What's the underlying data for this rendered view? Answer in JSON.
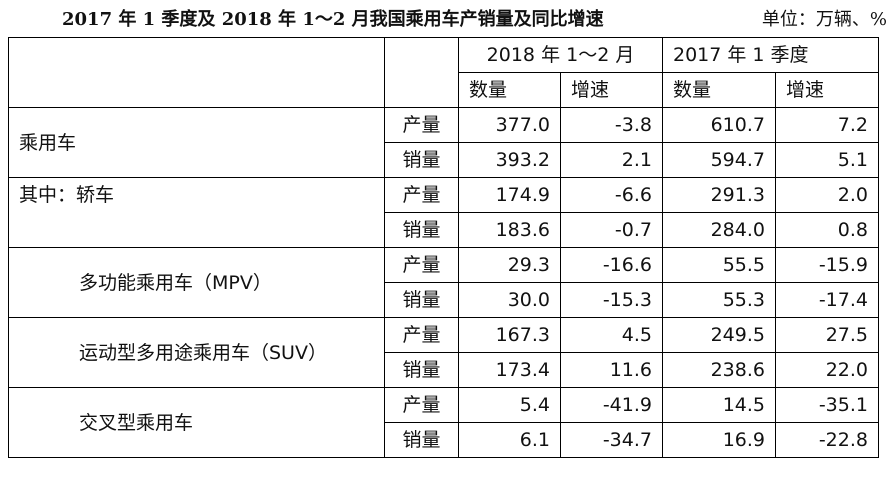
{
  "title": "2017 年 1 季度及 2018 年 1～2 月我国乘用车产销量及同比增速",
  "unit": "单位：万辆、%",
  "header": {
    "period_2018": "2018 年 1～2 月",
    "period_2017": "2017 年 1 季度",
    "col_qty": "数量",
    "col_growth": "增速"
  },
  "rows": [
    {
      "category": "乘用车",
      "production_label": "产量",
      "production": {
        "q2018": "377.0",
        "g2018": "-3.8",
        "q2017": "610.7",
        "g2017": "7.2"
      },
      "sales_label": "销量",
      "sales": {
        "q2018": "393.2",
        "g2018": "2.1",
        "q2017": "594.7",
        "g2017": "5.1"
      }
    },
    {
      "category": "其中：轿车",
      "production_label": "产量",
      "production": {
        "q2018": "174.9",
        "g2018": "-6.6",
        "q2017": "291.3",
        "g2017": "2.0"
      },
      "sales_label": "销量",
      "sales": {
        "q2018": "183.6",
        "g2018": "-0.7",
        "q2017": "284.0",
        "g2017": "0.8"
      }
    },
    {
      "category": "多功能乘用车（MPV）",
      "production_label": "产量",
      "production": {
        "q2018": "29.3",
        "g2018": "-16.6",
        "q2017": "55.5",
        "g2017": "-15.9"
      },
      "sales_label": "销量",
      "sales": {
        "q2018": "30.0",
        "g2018": "-15.3",
        "q2017": "55.3",
        "g2017": "-17.4"
      }
    },
    {
      "category": "运动型多用途乘用车（SUV）",
      "production_label": "产量",
      "production": {
        "q2018": "167.3",
        "g2018": "4.5",
        "q2017": "249.5",
        "g2017": "27.5"
      },
      "sales_label": "销量",
      "sales": {
        "q2018": "173.4",
        "g2018": "11.6",
        "q2017": "238.6",
        "g2017": "22.0"
      }
    },
    {
      "category": "交叉型乘用车",
      "production_label": "产量",
      "production": {
        "q2018": "5.4",
        "g2018": "-41.9",
        "q2017": "14.5",
        "g2017": "-35.1"
      },
      "sales_label": "销量",
      "sales": {
        "q2018": "6.1",
        "g2018": "-34.7",
        "q2017": "16.9",
        "g2017": "-22.8"
      }
    }
  ]
}
